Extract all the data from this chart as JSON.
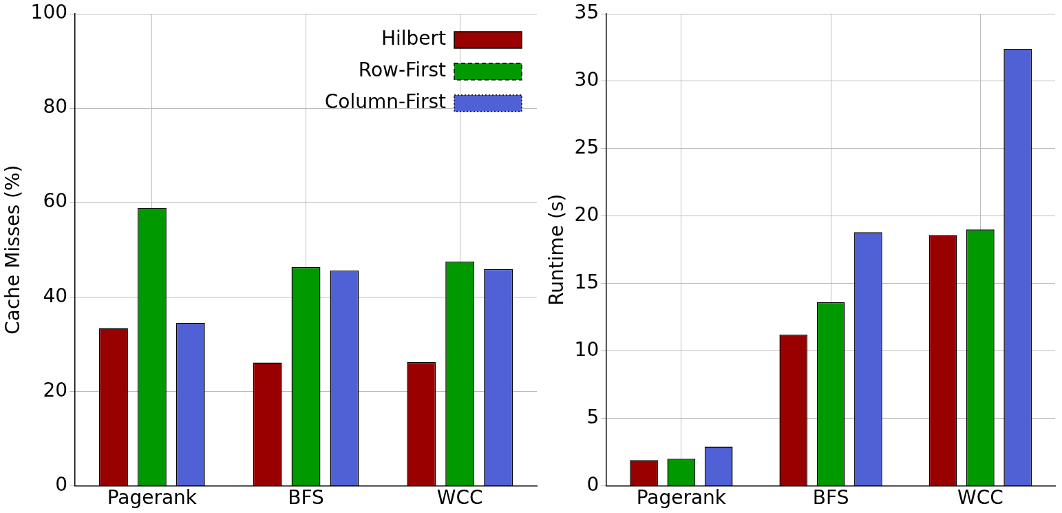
{
  "chart_data": [
    {
      "type": "bar",
      "categories": [
        "Pagerank",
        "BFS",
        "WCC"
      ],
      "ylabel": "Cache Misses (%)",
      "ylim": [
        0,
        100
      ],
      "yticks": [
        0,
        20,
        40,
        60,
        80,
        100
      ],
      "grid": true,
      "legend": "top right",
      "series": [
        {
          "name": "Hilbert",
          "color": "#990000",
          "line_style": "solid",
          "values": [
            33.4,
            26.1,
            26.2
          ]
        },
        {
          "name": "Row-First",
          "color": "#009900",
          "line_style": "dashed",
          "values": [
            58.9,
            46.3,
            47.5
          ]
        },
        {
          "name": "Column-First",
          "color": "#4f61d4",
          "line_style": "dotted",
          "values": [
            34.5,
            45.6,
            45.9
          ]
        }
      ]
    },
    {
      "type": "bar",
      "categories": [
        "Pagerank",
        "BFS",
        "WCC"
      ],
      "ylabel": "Runtime (s)",
      "ylim": [
        0,
        35
      ],
      "yticks": [
        0,
        5,
        10,
        15,
        20,
        25,
        30,
        35
      ],
      "grid": true,
      "legend": false,
      "series": [
        {
          "color": "#990000",
          "line_style": "solid",
          "values": [
            1.9,
            11.2,
            18.6
          ]
        },
        {
          "color": "#009900",
          "line_style": "dashed",
          "values": [
            2.0,
            13.6,
            19.0
          ]
        },
        {
          "color": "#4f61d4",
          "line_style": "dotted",
          "values": [
            2.9,
            18.8,
            32.4
          ]
        }
      ]
    }
  ]
}
